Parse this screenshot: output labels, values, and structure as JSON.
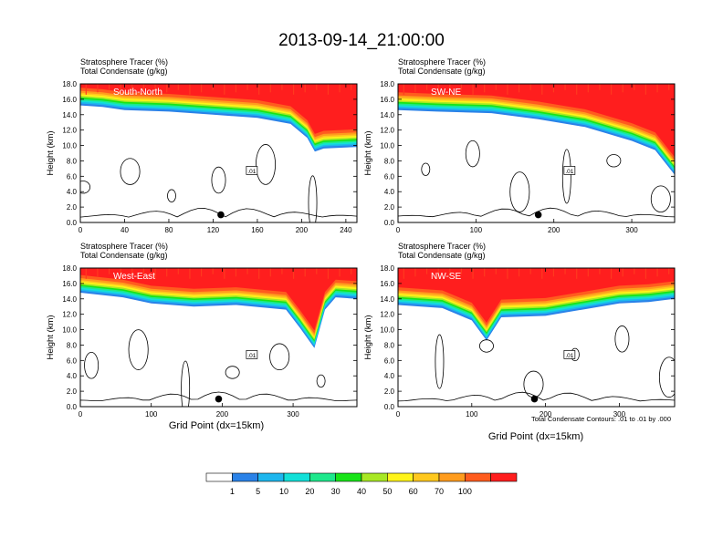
{
  "figure": {
    "title": "2013-09-14_21:00:00",
    "field_label_1": "Stratosphere Tracer",
    "field_unit_1": "(%)",
    "field_label_2": "Total Condensate",
    "field_unit_2": "(g/kg)",
    "y_axis_label": "Height (km)",
    "x_axis_label": "Grid Point (dx=15km)",
    "contour_note": "Total Condensate Contours: .01 to .01 by .000"
  },
  "colorbar": {
    "labels": [
      "1",
      "5",
      "10",
      "20",
      "30",
      "40",
      "50",
      "60",
      "70",
      "100"
    ],
    "colors": [
      "#ffffff",
      "#2a82e8",
      "#1db6ee",
      "#12e0d8",
      "#1ee88c",
      "#18e418",
      "#a8e824",
      "#fff41a",
      "#ffc81e",
      "#ff9c1e",
      "#ff5c1e",
      "#ff1e1e"
    ]
  },
  "chart_data": [
    {
      "type": "heatmap",
      "panel_label": "South-North",
      "ylim": [
        0,
        18
      ],
      "yticks": [
        "0.0",
        "2.0",
        "4.0",
        "6.0",
        "8.0",
        "10.0",
        "12.0",
        "14.0",
        "16.0",
        "18.0"
      ],
      "xlim": [
        0,
        250
      ],
      "xticks": [
        0,
        40,
        80,
        120,
        160,
        200,
        240
      ],
      "tropopause_km": [
        [
          0,
          15.2
        ],
        [
          20,
          15.0
        ],
        [
          40,
          14.6
        ],
        [
          80,
          14.4
        ],
        [
          120,
          14.0
        ],
        [
          160,
          13.6
        ],
        [
          190,
          12.8
        ],
        [
          205,
          11.0
        ],
        [
          212,
          9.2
        ],
        [
          220,
          9.6
        ],
        [
          250,
          9.8
        ]
      ],
      "contour_label": ".01",
      "marker_x": 127
    },
    {
      "type": "heatmap",
      "panel_label": "SW-NE",
      "ylim": [
        0,
        18
      ],
      "yticks": [
        "0.0",
        "2.0",
        "4.0",
        "6.0",
        "8.0",
        "10.0",
        "12.0",
        "14.0",
        "16.0",
        "18.0"
      ],
      "xlim": [
        0,
        355
      ],
      "xticks": [
        0,
        100,
        200,
        300
      ],
      "tropopause_km": [
        [
          0,
          14.6
        ],
        [
          50,
          14.4
        ],
        [
          120,
          14.2
        ],
        [
          180,
          13.4
        ],
        [
          240,
          12.4
        ],
        [
          300,
          10.6
        ],
        [
          330,
          9.4
        ],
        [
          355,
          6.2
        ]
      ],
      "contour_label": ".01",
      "marker_x": 180
    },
    {
      "type": "heatmap",
      "panel_label": "West-East",
      "ylim": [
        0,
        18
      ],
      "yticks": [
        "0.0",
        "2.0",
        "4.0",
        "6.0",
        "8.0",
        "10.0",
        "12.0",
        "14.0",
        "16.0",
        "18.0"
      ],
      "xlim": [
        0,
        390
      ],
      "xticks": [
        0,
        100,
        200,
        300
      ],
      "tropopause_km": [
        [
          0,
          14.8
        ],
        [
          60,
          14.2
        ],
        [
          100,
          13.4
        ],
        [
          160,
          13.0
        ],
        [
          220,
          13.2
        ],
        [
          290,
          12.6
        ],
        [
          310,
          10.2
        ],
        [
          330,
          7.6
        ],
        [
          345,
          12.6
        ],
        [
          360,
          14.2
        ],
        [
          390,
          14.0
        ]
      ],
      "contour_label": ".01",
      "marker_x": 195
    },
    {
      "type": "heatmap",
      "panel_label": "NW-SE",
      "ylim": [
        0,
        18
      ],
      "yticks": [
        "0.0",
        "2.0",
        "4.0",
        "6.0",
        "8.0",
        "10.0",
        "12.0",
        "14.0",
        "16.0",
        "18.0"
      ],
      "xlim": [
        0,
        375
      ],
      "xticks": [
        0,
        100,
        200,
        300
      ],
      "tropopause_km": [
        [
          0,
          13.2
        ],
        [
          60,
          12.8
        ],
        [
          100,
          11.2
        ],
        [
          120,
          8.6
        ],
        [
          140,
          11.6
        ],
        [
          200,
          11.8
        ],
        [
          250,
          12.6
        ],
        [
          300,
          13.4
        ],
        [
          340,
          13.6
        ],
        [
          375,
          14.0
        ]
      ],
      "contour_label": ".01",
      "marker_x": 185
    }
  ]
}
